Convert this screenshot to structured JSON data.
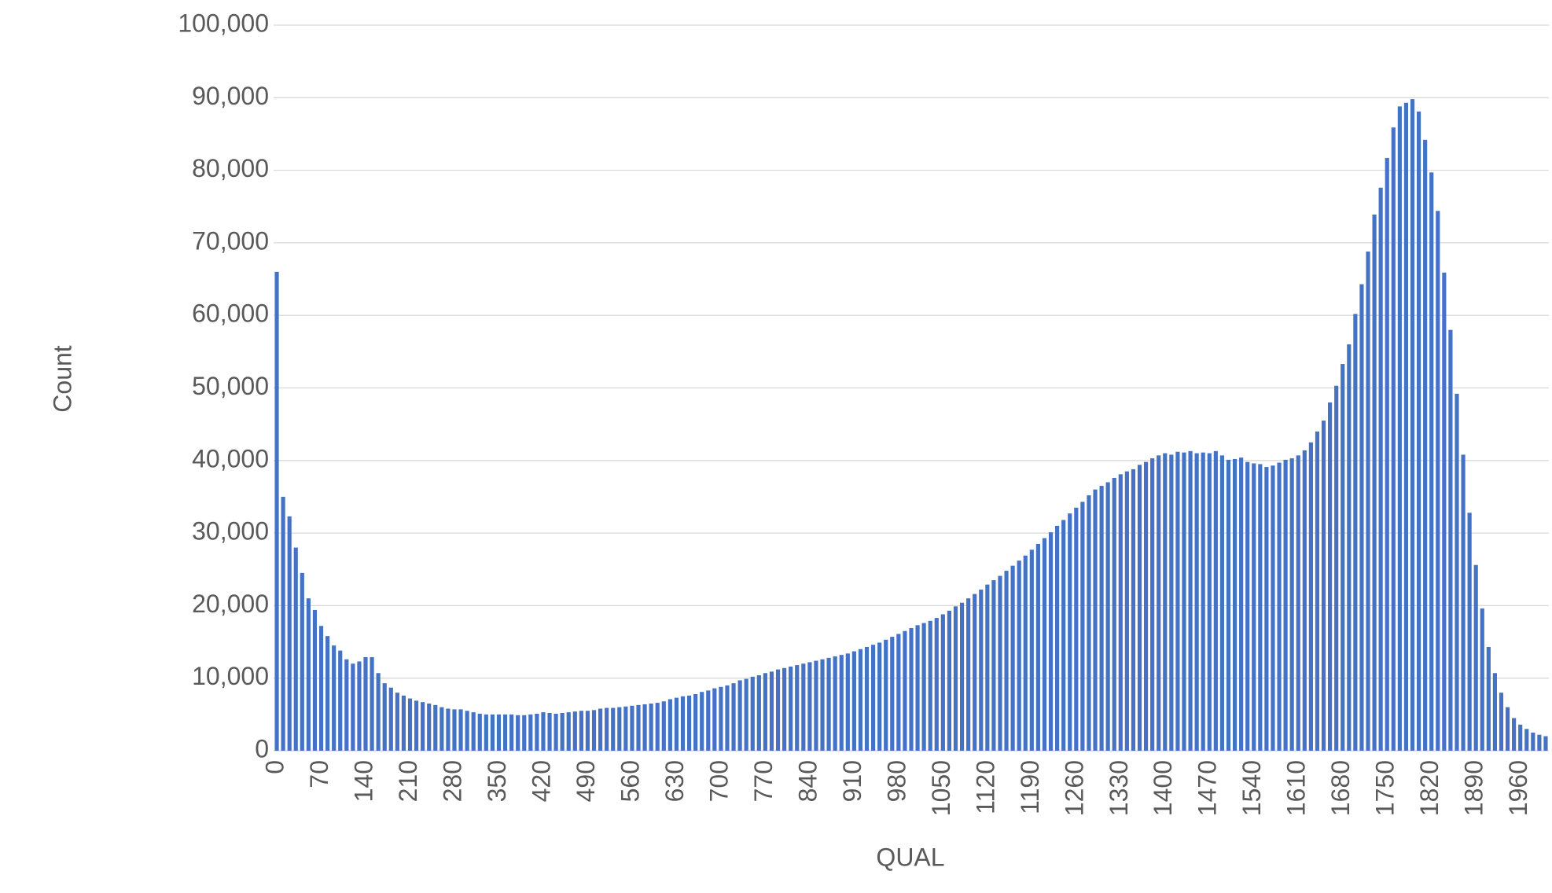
{
  "chart_data": {
    "type": "bar",
    "x_label": "QUAL",
    "y_label": "Count",
    "categories": [
      "0",
      null,
      null,
      null,
      null,
      null,
      null,
      "70",
      null,
      null,
      null,
      null,
      null,
      null,
      "140",
      null,
      null,
      null,
      null,
      null,
      null,
      "210",
      null,
      null,
      null,
      null,
      null,
      null,
      "280",
      null,
      null,
      null,
      null,
      null,
      null,
      "350",
      null,
      null,
      null,
      null,
      null,
      null,
      "420",
      null,
      null,
      null,
      null,
      null,
      null,
      "490",
      null,
      null,
      null,
      null,
      null,
      null,
      "560",
      null,
      null,
      null,
      null,
      null,
      null,
      "630",
      null,
      null,
      null,
      null,
      null,
      null,
      "700",
      null,
      null,
      null,
      null,
      null,
      null,
      "770",
      null,
      null,
      null,
      null,
      null,
      null,
      "840",
      null,
      null,
      null,
      null,
      null,
      null,
      "910",
      null,
      null,
      null,
      null,
      null,
      null,
      "980",
      null,
      null,
      null,
      null,
      null,
      null,
      "1050",
      null,
      null,
      null,
      null,
      null,
      null,
      "1120",
      null,
      null,
      null,
      null,
      null,
      null,
      "1190",
      null,
      null,
      null,
      null,
      null,
      null,
      "1260",
      null,
      null,
      null,
      null,
      null,
      null,
      "1330",
      null,
      null,
      null,
      null,
      null,
      null,
      "1400",
      null,
      null,
      null,
      null,
      null,
      null,
      "1470",
      null,
      null,
      null,
      null,
      null,
      null,
      "1540",
      null,
      null,
      null,
      null,
      null,
      null,
      "1610",
      null,
      null,
      null,
      null,
      null,
      null,
      "1680",
      null,
      null,
      null,
      null,
      null,
      null,
      "1750",
      null,
      null,
      null,
      null,
      null,
      null,
      "1820",
      null,
      null,
      null,
      null,
      null,
      null,
      "1890",
      null,
      null,
      null,
      null,
      null,
      null,
      "1960",
      null,
      null,
      null,
      null
    ],
    "values": [
      66000,
      35000,
      32300,
      28000,
      24500,
      21000,
      19400,
      17200,
      15800,
      14500,
      13800,
      12600,
      12000,
      12300,
      12900,
      12900,
      10700,
      9300,
      8700,
      8000,
      7600,
      7200,
      6900,
      6700,
      6500,
      6300,
      6000,
      5800,
      5700,
      5700,
      5500,
      5300,
      5100,
      5000,
      5000,
      5000,
      5000,
      5000,
      4900,
      4900,
      5000,
      5100,
      5300,
      5200,
      5100,
      5200,
      5300,
      5400,
      5500,
      5500,
      5600,
      5800,
      5900,
      5900,
      6000,
      6100,
      6200,
      6300,
      6400,
      6500,
      6600,
      6800,
      7100,
      7300,
      7500,
      7600,
      7800,
      8100,
      8300,
      8600,
      8800,
      9000,
      9300,
      9700,
      9900,
      10200,
      10400,
      10700,
      10900,
      11200,
      11400,
      11600,
      11800,
      12000,
      12200,
      12400,
      12600,
      12800,
      13000,
      13200,
      13400,
      13700,
      14000,
      14300,
      14600,
      14900,
      15300,
      15700,
      16100,
      16500,
      16900,
      17300,
      17600,
      17900,
      18300,
      18800,
      19300,
      19900,
      20400,
      21000,
      21600,
      22200,
      22900,
      23500,
      24100,
      24800,
      25500,
      26200,
      26900,
      27700,
      28500,
      29300,
      30100,
      31000,
      31800,
      32700,
      33500,
      34300,
      35200,
      36000,
      36500,
      37000,
      37600,
      38100,
      38500,
      38800,
      39400,
      39800,
      40300,
      40700,
      41000,
      40800,
      41200,
      41100,
      41300,
      41000,
      41100,
      41000,
      41300,
      40700,
      40100,
      40200,
      40400,
      39800,
      39600,
      39500,
      39100,
      39300,
      39700,
      40100,
      40300,
      40700,
      41400,
      42500,
      44000,
      45500,
      48000,
      50300,
      53300,
      56000,
      60200,
      64300,
      68800,
      73900,
      77600,
      81700,
      85900,
      88800,
      89300,
      89800,
      88100,
      84200,
      79700,
      74400,
      65900,
      58000,
      49200,
      40800,
      32800,
      25600,
      19600,
      14300,
      10700,
      8000,
      6000,
      4500,
      3600,
      3000,
      2500,
      2200,
      2000
    ],
    "color": "#4472c4",
    "ylim": [
      0,
      100000
    ],
    "yticks": [
      0,
      {
        "value": 10000,
        "label": "10,000"
      },
      {
        "value": 20000,
        "label": "20,000"
      },
      {
        "value": 30000,
        "label": "30,000"
      },
      {
        "value": 40000,
        "label": "40,000"
      },
      {
        "value": 50000,
        "label": "50,000"
      },
      {
        "value": 60000,
        "label": "60,000"
      },
      {
        "value": 70000,
        "label": "70,000"
      },
      {
        "value": 80000,
        "label": "80,000"
      },
      {
        "value": 90000,
        "label": "90,000"
      },
      {
        "value": 100000,
        "label": "100,000"
      }
    ],
    "grid": true
  }
}
